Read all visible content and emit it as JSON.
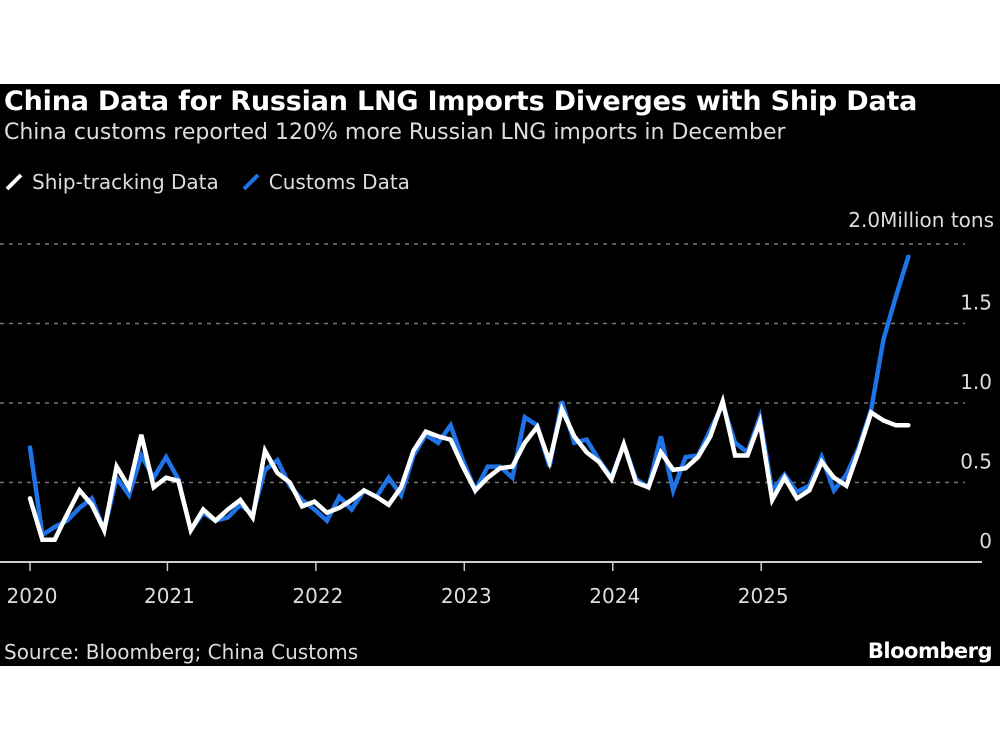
{
  "title": "China Data for Russian LNG Imports Diverges with Ship Data",
  "subtitle": "China customs reported 120% more Russian LNG imports in December",
  "source": "Source: Bloomberg; China Customs",
  "logo": "Bloomberg",
  "chart_data": {
    "type": "line",
    "title": "China Data for Russian LNG Imports Diverges with Ship Data",
    "ylabel": "Million tons",
    "unit_label": "2.0Million tons",
    "ylim": [
      0,
      2.0
    ],
    "yticks": [
      "0",
      "0.5",
      "1.0",
      "1.5",
      "2.0"
    ],
    "yticks_values": [
      0,
      0.5,
      1.0,
      1.5,
      2.0
    ],
    "xticks": [
      "2020",
      "2021",
      "2022",
      "2023",
      "2024",
      "2025"
    ],
    "x_start": "2020-01",
    "x_frequency": "monthly",
    "grid": true,
    "legend_placement": "top-left",
    "series": [
      {
        "name": "Ship-tracking Data",
        "color": "#ffffff",
        "values": [
          0.4,
          0.14,
          0.14,
          0.3,
          0.45,
          0.36,
          0.2,
          0.6,
          0.47,
          0.8,
          0.47,
          0.53,
          0.51,
          0.2,
          0.33,
          0.26,
          0.33,
          0.39,
          0.28,
          0.7,
          0.56,
          0.5,
          0.35,
          0.38,
          0.31,
          0.34,
          0.39,
          0.45,
          0.41,
          0.36,
          0.47,
          0.7,
          0.82,
          0.79,
          0.77,
          0.6,
          0.45,
          0.53,
          0.59,
          0.6,
          0.75,
          0.85,
          0.63,
          0.96,
          0.79,
          0.69,
          0.63,
          0.52,
          0.74,
          0.5,
          0.47,
          0.69,
          0.58,
          0.59,
          0.66,
          0.79,
          1.01,
          0.67,
          0.67,
          0.88,
          0.39,
          0.53,
          0.4,
          0.45,
          0.63,
          0.53,
          0.48,
          0.7,
          0.94,
          0.89,
          0.86,
          0.86
        ]
      },
      {
        "name": "Customs Data",
        "color": "#1f73e6",
        "values": [
          0.72,
          0.17,
          0.22,
          0.26,
          0.34,
          0.4,
          0.2,
          0.53,
          0.42,
          0.67,
          0.53,
          0.66,
          0.52,
          0.2,
          0.31,
          0.26,
          0.28,
          0.36,
          0.3,
          0.58,
          0.64,
          0.48,
          0.39,
          0.33,
          0.26,
          0.41,
          0.33,
          0.45,
          0.41,
          0.53,
          0.42,
          0.67,
          0.8,
          0.75,
          0.86,
          0.64,
          0.45,
          0.6,
          0.6,
          0.53,
          0.91,
          0.86,
          0.6,
          1.01,
          0.75,
          0.77,
          0.64,
          0.53,
          0.74,
          0.52,
          0.47,
          0.79,
          0.45,
          0.66,
          0.67,
          0.83,
          0.99,
          0.75,
          0.69,
          0.91,
          0.45,
          0.55,
          0.44,
          0.48,
          0.66,
          0.45,
          0.55,
          0.72,
          0.96,
          1.4,
          1.67,
          1.92
        ]
      }
    ]
  }
}
